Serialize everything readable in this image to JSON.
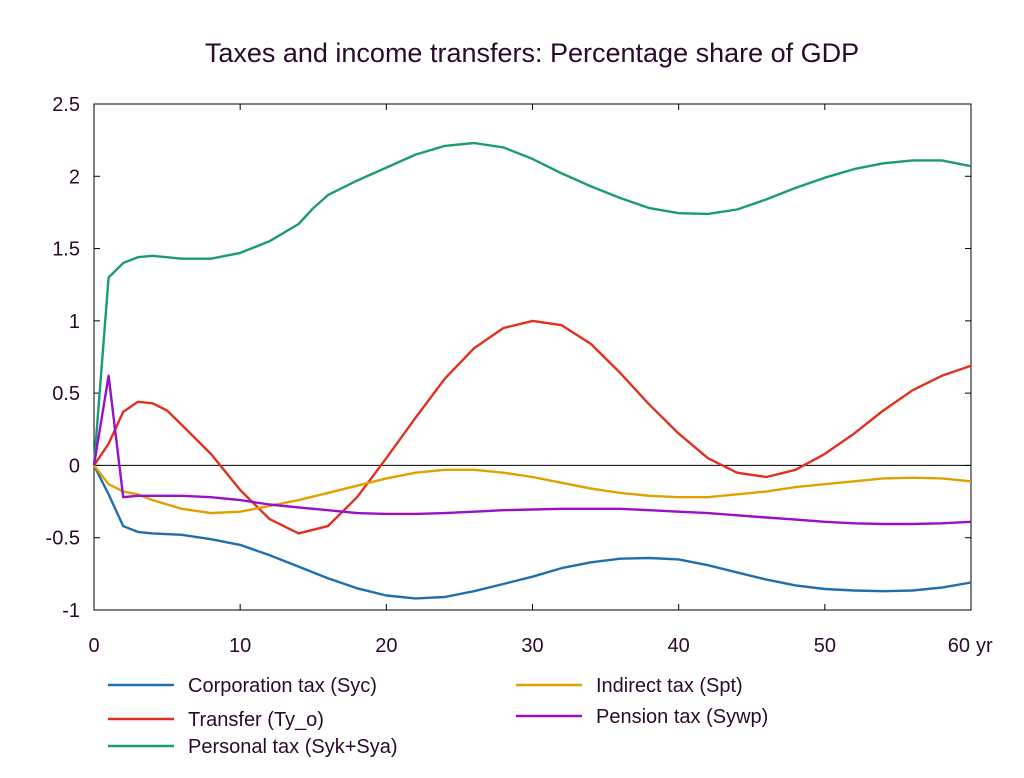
{
  "chart_data": {
    "type": "line",
    "title": "Taxes and income transfers: Percentage share of GDP",
    "x_unit_label": "yr",
    "xlim": [
      0,
      60
    ],
    "ylim": [
      -1,
      2.5
    ],
    "x_ticks": [
      {
        "value": 0,
        "label": "0"
      },
      {
        "value": 10,
        "label": "10"
      },
      {
        "value": 20,
        "label": "20"
      },
      {
        "value": 30,
        "label": "30"
      },
      {
        "value": 40,
        "label": "40"
      },
      {
        "value": 50,
        "label": "50"
      },
      {
        "value": 60,
        "label": "60"
      }
    ],
    "y_ticks": [
      {
        "value": 2.5,
        "label": "2.5"
      },
      {
        "value": 2,
        "label": "2"
      },
      {
        "value": 1.5,
        "label": "1.5"
      },
      {
        "value": 1,
        "label": "1"
      },
      {
        "value": 0.5,
        "label": "0.5"
      },
      {
        "value": 0,
        "label": "0"
      },
      {
        "value": -0.5,
        "label": "-0.5"
      },
      {
        "value": -1,
        "label": "-1"
      }
    ],
    "grid": false,
    "zero_line": true,
    "legend_position": "bottom",
    "series": [
      {
        "name": "Corporation tax (Syc)",
        "color": "#1f6fae",
        "points": [
          [
            0,
            0
          ],
          [
            1,
            -0.2
          ],
          [
            2,
            -0.42
          ],
          [
            3,
            -0.46
          ],
          [
            4,
            -0.47
          ],
          [
            6,
            -0.48
          ],
          [
            8,
            -0.51
          ],
          [
            10,
            -0.55
          ],
          [
            12,
            -0.62
          ],
          [
            14,
            -0.7
          ],
          [
            16,
            -0.78
          ],
          [
            18,
            -0.85
          ],
          [
            20,
            -0.9
          ],
          [
            22,
            -0.92
          ],
          [
            24,
            -0.91
          ],
          [
            26,
            -0.87
          ],
          [
            28,
            -0.82
          ],
          [
            30,
            -0.77
          ],
          [
            32,
            -0.71
          ],
          [
            34,
            -0.67
          ],
          [
            36,
            -0.645
          ],
          [
            38,
            -0.64
          ],
          [
            40,
            -0.65
          ],
          [
            42,
            -0.69
          ],
          [
            44,
            -0.74
          ],
          [
            46,
            -0.79
          ],
          [
            48,
            -0.83
          ],
          [
            50,
            -0.855
          ],
          [
            52,
            -0.865
          ],
          [
            54,
            -0.87
          ],
          [
            56,
            -0.865
          ],
          [
            58,
            -0.845
          ],
          [
            60,
            -0.81
          ]
        ]
      },
      {
        "name": "Transfer (Ty_o)",
        "color": "#e03020",
        "points": [
          [
            0,
            0
          ],
          [
            1,
            0.15
          ],
          [
            2,
            0.37
          ],
          [
            3,
            0.44
          ],
          [
            4,
            0.43
          ],
          [
            5,
            0.38
          ],
          [
            6,
            0.28
          ],
          [
            8,
            0.08
          ],
          [
            10,
            -0.17
          ],
          [
            12,
            -0.37
          ],
          [
            14,
            -0.47
          ],
          [
            16,
            -0.42
          ],
          [
            18,
            -0.22
          ],
          [
            20,
            0.05
          ],
          [
            22,
            0.33
          ],
          [
            24,
            0.6
          ],
          [
            26,
            0.81
          ],
          [
            28,
            0.95
          ],
          [
            30,
            1.0
          ],
          [
            32,
            0.97
          ],
          [
            34,
            0.84
          ],
          [
            36,
            0.64
          ],
          [
            38,
            0.42
          ],
          [
            40,
            0.22
          ],
          [
            42,
            0.05
          ],
          [
            44,
            -0.05
          ],
          [
            46,
            -0.08
          ],
          [
            48,
            -0.03
          ],
          [
            50,
            0.08
          ],
          [
            52,
            0.22
          ],
          [
            54,
            0.38
          ],
          [
            56,
            0.52
          ],
          [
            58,
            0.62
          ],
          [
            60,
            0.69
          ]
        ]
      },
      {
        "name": "Personal tax (Syk+Sya)",
        "color": "#1a9a78",
        "points": [
          [
            0,
            0
          ],
          [
            1,
            1.3
          ],
          [
            2,
            1.4
          ],
          [
            3,
            1.44
          ],
          [
            4,
            1.45
          ],
          [
            6,
            1.43
          ],
          [
            8,
            1.43
          ],
          [
            10,
            1.47
          ],
          [
            12,
            1.55
          ],
          [
            14,
            1.67
          ],
          [
            15,
            1.78
          ],
          [
            16,
            1.87
          ],
          [
            18,
            1.97
          ],
          [
            20,
            2.06
          ],
          [
            22,
            2.15
          ],
          [
            24,
            2.21
          ],
          [
            26,
            2.23
          ],
          [
            28,
            2.2
          ],
          [
            30,
            2.12
          ],
          [
            32,
            2.02
          ],
          [
            34,
            1.93
          ],
          [
            36,
            1.85
          ],
          [
            38,
            1.78
          ],
          [
            40,
            1.745
          ],
          [
            42,
            1.74
          ],
          [
            44,
            1.77
          ],
          [
            46,
            1.84
          ],
          [
            48,
            1.92
          ],
          [
            50,
            1.99
          ],
          [
            52,
            2.05
          ],
          [
            54,
            2.09
          ],
          [
            56,
            2.11
          ],
          [
            58,
            2.11
          ],
          [
            60,
            2.07
          ]
        ]
      },
      {
        "name": "Indirect tax (Spt)",
        "color": "#e0a000",
        "points": [
          [
            0,
            0
          ],
          [
            1,
            -0.13
          ],
          [
            2,
            -0.18
          ],
          [
            3,
            -0.2
          ],
          [
            4,
            -0.24
          ],
          [
            6,
            -0.3
          ],
          [
            8,
            -0.33
          ],
          [
            10,
            -0.32
          ],
          [
            12,
            -0.28
          ],
          [
            14,
            -0.24
          ],
          [
            16,
            -0.19
          ],
          [
            18,
            -0.14
          ],
          [
            20,
            -0.09
          ],
          [
            22,
            -0.05
          ],
          [
            24,
            -0.03
          ],
          [
            26,
            -0.03
          ],
          [
            28,
            -0.05
          ],
          [
            30,
            -0.08
          ],
          [
            32,
            -0.12
          ],
          [
            34,
            -0.16
          ],
          [
            36,
            -0.19
          ],
          [
            38,
            -0.21
          ],
          [
            40,
            -0.22
          ],
          [
            42,
            -0.22
          ],
          [
            44,
            -0.2
          ],
          [
            46,
            -0.18
          ],
          [
            48,
            -0.15
          ],
          [
            50,
            -0.13
          ],
          [
            52,
            -0.11
          ],
          [
            54,
            -0.09
          ],
          [
            56,
            -0.085
          ],
          [
            58,
            -0.09
          ],
          [
            60,
            -0.11
          ]
        ]
      },
      {
        "name": "Pension tax (Sywp)",
        "color": "#9a10c8",
        "points": [
          [
            0,
            0
          ],
          [
            1,
            0.62
          ],
          [
            2,
            -0.22
          ],
          [
            3,
            -0.21
          ],
          [
            4,
            -0.21
          ],
          [
            6,
            -0.21
          ],
          [
            8,
            -0.22
          ],
          [
            10,
            -0.24
          ],
          [
            12,
            -0.27
          ],
          [
            14,
            -0.29
          ],
          [
            16,
            -0.31
          ],
          [
            18,
            -0.33
          ],
          [
            20,
            -0.335
          ],
          [
            22,
            -0.335
          ],
          [
            24,
            -0.33
          ],
          [
            26,
            -0.32
          ],
          [
            28,
            -0.31
          ],
          [
            30,
            -0.305
          ],
          [
            32,
            -0.3
          ],
          [
            34,
            -0.3
          ],
          [
            36,
            -0.3
          ],
          [
            38,
            -0.31
          ],
          [
            40,
            -0.32
          ],
          [
            42,
            -0.33
          ],
          [
            44,
            -0.345
          ],
          [
            46,
            -0.36
          ],
          [
            48,
            -0.375
          ],
          [
            50,
            -0.39
          ],
          [
            52,
            -0.4
          ],
          [
            54,
            -0.405
          ],
          [
            56,
            -0.405
          ],
          [
            58,
            -0.4
          ],
          [
            60,
            -0.39
          ]
        ]
      }
    ]
  }
}
